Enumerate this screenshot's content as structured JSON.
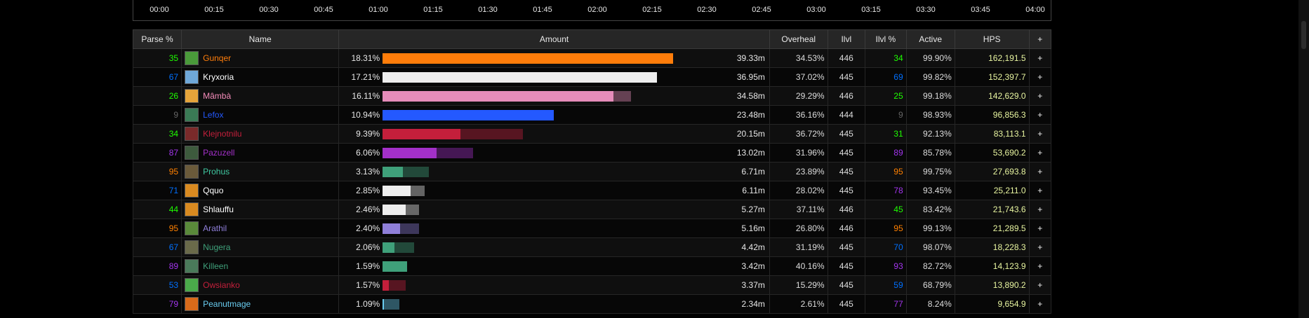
{
  "timeline": {
    "ticks": [
      "00:00",
      "00:15",
      "00:30",
      "00:45",
      "01:00",
      "01:15",
      "01:30",
      "01:45",
      "02:00",
      "02:15",
      "02:30",
      "02:45",
      "03:00",
      "03:15",
      "03:30",
      "03:45",
      "04:00"
    ]
  },
  "headers": {
    "parse": "Parse %",
    "name": "Name",
    "amount": "Amount",
    "overheal": "Overheal",
    "ilvl": "Ilvl",
    "ilvl_pct": "Ilvl %",
    "active": "Active",
    "hps": "HPS",
    "plus": "+"
  },
  "rows": [
    {
      "parse": "35",
      "parse_color": "#1eff00",
      "name": "Gunqer",
      "name_color": "#ff7d0a",
      "icon": "druid-restoration-icon",
      "icon_color": "#4a9a3a",
      "pct": "18.31%",
      "bar": 0.9,
      "bar2": 0.0,
      "bar_color": "#ff7d0a",
      "total": "39.33m",
      "overheal": "34.53%",
      "ilvl": "446",
      "ilvl_pct": "34",
      "ilvl_pct_color": "#1eff00",
      "active": "99.90%",
      "hps": "162,191.5"
    },
    {
      "parse": "67",
      "parse_color": "#0070ff",
      "name": "Kryxoria",
      "name_color": "#ffffff",
      "icon": "priest-holy-icon",
      "icon_color": "#6fa8d8",
      "pct": "17.21%",
      "bar": 0.849,
      "bar2": 0.0,
      "bar_color": "#eeeeee",
      "total": "36.95m",
      "overheal": "37.02%",
      "ilvl": "445",
      "ilvl_pct": "69",
      "ilvl_pct_color": "#0070ff",
      "active": "99.82%",
      "hps": "152,397.7"
    },
    {
      "parse": "26",
      "parse_color": "#1eff00",
      "name": "Mâmbà",
      "name_color": "#f58cba",
      "icon": "paladin-holy-icon",
      "icon_color": "#e6a43a",
      "pct": "16.11%",
      "bar": 0.716,
      "bar2": 0.055,
      "bar_color": "#e58cba",
      "total": "34.58m",
      "overheal": "29.29%",
      "ilvl": "446",
      "ilvl_pct": "25",
      "ilvl_pct_color": "#1eff00",
      "active": "99.18%",
      "hps": "142,629.0"
    },
    {
      "parse": "9",
      "parse_color": "#666666",
      "name": "Lefox",
      "name_color": "#2459ff",
      "icon": "shaman-restoration-icon",
      "icon_color": "#3a7a55",
      "pct": "10.94%",
      "bar": 0.53,
      "bar2": 0.0,
      "bar_color": "#2459ff",
      "total": "23.48m",
      "overheal": "36.16%",
      "ilvl": "444",
      "ilvl_pct": "9",
      "ilvl_pct_color": "#666666",
      "active": "98.93%",
      "hps": "96,856.3"
    },
    {
      "parse": "34",
      "parse_color": "#1eff00",
      "name": "Klejnotnilu",
      "name_color": "#c41f3b",
      "icon": "deathknight-icon",
      "icon_color": "#7a2a2a",
      "pct": "9.39%",
      "bar": 0.241,
      "bar2": 0.193,
      "bar_color": "#c41f3b",
      "total": "20.15m",
      "overheal": "36.72%",
      "ilvl": "445",
      "ilvl_pct": "31",
      "ilvl_pct_color": "#1eff00",
      "active": "92.13%",
      "hps": "83,113.1"
    },
    {
      "parse": "87",
      "parse_color": "#a335ee",
      "name": "Pazuzell",
      "name_color": "#a330c9",
      "icon": "demonhunter-icon",
      "icon_color": "#3d5a3d",
      "pct": "6.06%",
      "bar": 0.168,
      "bar2": 0.112,
      "bar_color": "#a330c9",
      "total": "13.02m",
      "overheal": "31.96%",
      "ilvl": "445",
      "ilvl_pct": "89",
      "ilvl_pct_color": "#a335ee",
      "active": "85.78%",
      "hps": "53,690.2"
    },
    {
      "parse": "95",
      "parse_color": "#ff8000",
      "name": "Prohus",
      "name_color": "#3fc7a0",
      "icon": "warrior-icon",
      "icon_color": "#6a5a3a",
      "pct": "3.13%",
      "bar": 0.063,
      "bar2": 0.08,
      "bar_color": "#3fa07a",
      "total": "6.71m",
      "overheal": "23.89%",
      "ilvl": "445",
      "ilvl_pct": "95",
      "ilvl_pct_color": "#ff8000",
      "active": "99.75%",
      "hps": "27,693.8"
    },
    {
      "parse": "71",
      "parse_color": "#0070ff",
      "name": "Qquo",
      "name_color": "#ffffff",
      "icon": "priest-shadow-icon",
      "icon_color": "#d98a20",
      "pct": "2.85%",
      "bar": 0.087,
      "bar2": 0.043,
      "bar_color": "#eeeeee",
      "total": "6.11m",
      "overheal": "28.02%",
      "ilvl": "445",
      "ilvl_pct": "78",
      "ilvl_pct_color": "#a335ee",
      "active": "93.45%",
      "hps": "25,211.0"
    },
    {
      "parse": "44",
      "parse_color": "#1eff00",
      "name": "Shlauffu",
      "name_color": "#ffffff",
      "icon": "priest-discipline-icon",
      "icon_color": "#d98a20",
      "pct": "2.46%",
      "bar": 0.072,
      "bar2": 0.041,
      "bar_color": "#eeeeee",
      "total": "5.27m",
      "overheal": "37.11%",
      "ilvl": "446",
      "ilvl_pct": "45",
      "ilvl_pct_color": "#1eff00",
      "active": "83.42%",
      "hps": "21,743.6"
    },
    {
      "parse": "95",
      "parse_color": "#ff8000",
      "name": "Arathil",
      "name_color": "#8f7fd9",
      "icon": "hunter-icon",
      "icon_color": "#5a8a3a",
      "pct": "2.40%",
      "bar": 0.054,
      "bar2": 0.059,
      "bar_color": "#8f7fd9",
      "total": "5.16m",
      "overheal": "26.80%",
      "ilvl": "446",
      "ilvl_pct": "95",
      "ilvl_pct_color": "#ff8000",
      "active": "99.13%",
      "hps": "21,289.5"
    },
    {
      "parse": "67",
      "parse_color": "#0070ff",
      "name": "Nugera",
      "name_color": "#3fa07a",
      "icon": "monk-icon",
      "icon_color": "#6a6a4a",
      "pct": "2.06%",
      "bar": 0.037,
      "bar2": 0.061,
      "bar_color": "#3fa07a",
      "total": "4.42m",
      "overheal": "31.19%",
      "ilvl": "445",
      "ilvl_pct": "70",
      "ilvl_pct_color": "#0070ff",
      "active": "98.07%",
      "hps": "18,228.3"
    },
    {
      "parse": "89",
      "parse_color": "#a335ee",
      "name": "Killeen",
      "name_color": "#3fa07a",
      "icon": "monk-windwalker-icon",
      "icon_color": "#4a7a5a",
      "pct": "1.59%",
      "bar": 0.076,
      "bar2": 0.0,
      "bar_color": "#3fa07a",
      "total": "3.42m",
      "overheal": "40.16%",
      "ilvl": "445",
      "ilvl_pct": "93",
      "ilvl_pct_color": "#a335ee",
      "active": "82.72%",
      "hps": "14,123.9"
    },
    {
      "parse": "53",
      "parse_color": "#0070ff",
      "name": "Owsianko",
      "name_color": "#c41f3b",
      "icon": "deathknight-unholy-icon",
      "icon_color": "#4aaa4a",
      "pct": "1.57%",
      "bar": 0.02,
      "bar2": 0.052,
      "bar_color": "#c41f3b",
      "total": "3.37m",
      "overheal": "15.29%",
      "ilvl": "445",
      "ilvl_pct": "59",
      "ilvl_pct_color": "#0070ff",
      "active": "68.79%",
      "hps": "13,890.2"
    },
    {
      "parse": "79",
      "parse_color": "#a335ee",
      "name": "Peanutmage",
      "name_color": "#69ccf0",
      "icon": "mage-fire-icon",
      "icon_color": "#d86a1a",
      "pct": "1.09%",
      "bar": 0.004,
      "bar2": 0.048,
      "bar_color": "#69ccf0",
      "total": "2.34m",
      "overheal": "2.61%",
      "ilvl": "445",
      "ilvl_pct": "77",
      "ilvl_pct_color": "#a335ee",
      "active": "8.24%",
      "hps": "9,654.9"
    }
  ]
}
